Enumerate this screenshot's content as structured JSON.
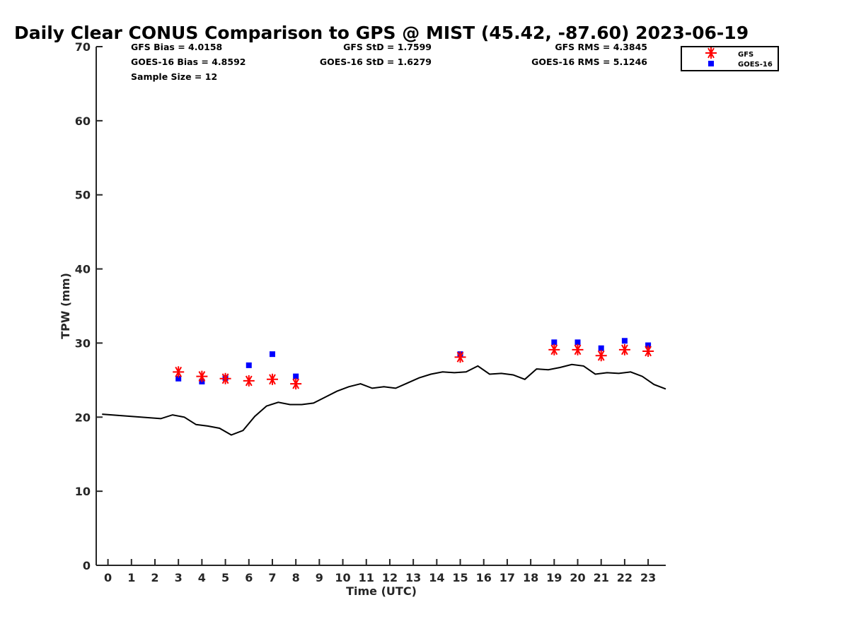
{
  "chart_data": {
    "type": "scatter",
    "title": "Daily Clear CONUS Comparison to GPS @ MIST (45.42, -87.60) 2023-06-19",
    "xlabel": "Time (UTC)",
    "ylabel": "TPW (mm)",
    "xlim": [
      -0.5,
      23.75
    ],
    "ylim": [
      0,
      70
    ],
    "x_ticks": [
      "0",
      "1",
      "2",
      "3",
      "4",
      "5",
      "6",
      "7",
      "8",
      "9",
      "10",
      "11",
      "12",
      "13",
      "14",
      "15",
      "16",
      "17",
      "18",
      "19",
      "20",
      "21",
      "22",
      "23"
    ],
    "y_ticks": [
      "0",
      "10",
      "20",
      "30",
      "40",
      "50",
      "60",
      "70"
    ],
    "grid": false,
    "legend_position": "top-right (outside plot)",
    "stats": {
      "gfs_bias": "GFS Bias = 4.0158",
      "goes_bias": "GOES-16 Bias = 4.8592",
      "sample_size": "Sample Size = 12",
      "gfs_std": "GFS StD = 1.7599",
      "goes_std": "GOES-16 StD = 1.6279",
      "gfs_rms": "GFS RMS = 4.3845",
      "goes_rms": "GOES-16 RMS = 5.1246"
    },
    "series": [
      {
        "name": "GFS",
        "marker": "asterisk",
        "color": "#ff0000",
        "x": [
          3,
          4,
          5,
          6,
          7,
          8,
          15,
          19,
          20,
          21,
          22,
          23
        ],
        "y": [
          26.1,
          25.5,
          25.2,
          24.9,
          25.1,
          24.5,
          28.1,
          29.1,
          29.1,
          28.3,
          29.1,
          28.9
        ]
      },
      {
        "name": "GOES-16",
        "marker": "square",
        "color": "#0000ff",
        "x": [
          3,
          4,
          5,
          6,
          7,
          8,
          15,
          19,
          20,
          21,
          22,
          23
        ],
        "y": [
          25.2,
          24.8,
          25.3,
          27.0,
          28.5,
          25.5,
          28.5,
          30.1,
          30.1,
          29.3,
          30.3,
          29.7
        ]
      },
      {
        "marker": "line",
        "color": "#000000",
        "x": [
          -0.25,
          2.25,
          2.75,
          3.25,
          3.75,
          4.25,
          4.75,
          5.25,
          5.75,
          6.25,
          6.75,
          7.25,
          7.75,
          8.25,
          8.75,
          9.25,
          9.75,
          10.25,
          10.75,
          11.25,
          11.75,
          12.25,
          12.75,
          13.25,
          13.75,
          14.25,
          14.75,
          15.25,
          15.75,
          16.25,
          16.75,
          17.25,
          17.75,
          18.25,
          18.75,
          19.25,
          19.75,
          20.25,
          20.75,
          21.25,
          21.75,
          22.25,
          22.75,
          23.25,
          23.75
        ],
        "y": [
          20.4,
          19.8,
          20.3,
          20.0,
          19.0,
          18.8,
          18.5,
          17.6,
          18.2,
          20.1,
          21.5,
          22.0,
          21.7,
          21.7,
          21.9,
          22.7,
          23.5,
          24.1,
          24.5,
          23.9,
          24.1,
          23.9,
          24.6,
          25.3,
          25.8,
          26.1,
          26.0,
          26.1,
          26.9,
          25.8,
          25.9,
          25.7,
          25.1,
          26.5,
          26.4,
          26.7,
          27.1,
          26.9,
          25.8,
          26.0,
          25.9,
          26.1,
          25.5,
          24.4,
          23.8
        ]
      }
    ]
  }
}
